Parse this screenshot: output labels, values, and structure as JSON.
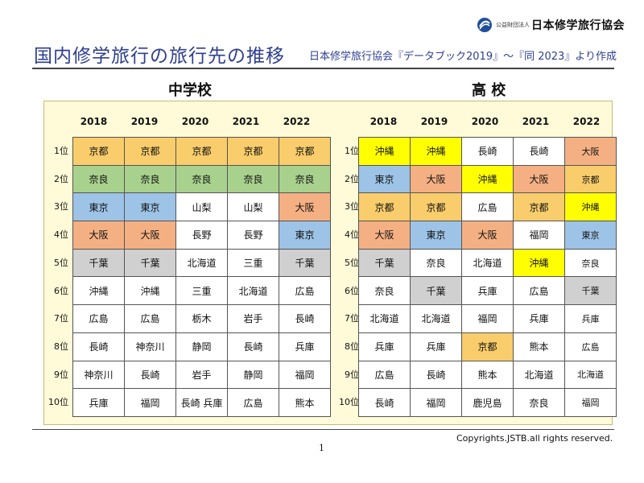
{
  "org": {
    "sub": "公益財団法人",
    "name": "日本修学旅行協会",
    "logo_icon": "jstb-logo-icon"
  },
  "title": "国内修学旅行の旅行先の推移",
  "source": "日本修学旅行協会『データブック2019』～『同 2023』より作成",
  "colors": {
    "orange": "#f9cd6b",
    "green": "#a9d18e",
    "blue": "#9dc3e6",
    "salmon": "#f4b083",
    "gray": "#d0d0d0",
    "yellow": "#ffff00",
    "panel": "#fffbd8",
    "title": "#2e3f8f"
  },
  "ranks": [
    "1位",
    "2位",
    "3位",
    "4位",
    "5位",
    "6位",
    "7位",
    "8位",
    "9位",
    "10位"
  ],
  "junior_high": {
    "title": "中学校",
    "years": [
      "2018",
      "2019",
      "2020",
      "2021",
      "2022"
    ],
    "rows": [
      [
        "京都",
        "京都",
        "京都",
        "京都",
        "京都"
      ],
      [
        "奈良",
        "奈良",
        "奈良",
        "奈良",
        "奈良"
      ],
      [
        "東京",
        "東京",
        "山梨",
        "山梨",
        "大阪"
      ],
      [
        "大阪",
        "大阪",
        "長野",
        "長野",
        "東京"
      ],
      [
        "千葉",
        "千葉",
        "北海道",
        "三重",
        "千葉"
      ],
      [
        "沖縄",
        "沖縄",
        "三重",
        "北海道",
        "広島"
      ],
      [
        "広島",
        "広島",
        "栃木",
        "岩手",
        "長崎"
      ],
      [
        "長崎",
        "神奈川",
        "静岡",
        "長崎",
        "兵庫"
      ],
      [
        "神奈川",
        "長崎",
        "岩手",
        "静岡",
        "福岡"
      ],
      [
        "兵庫",
        "福岡",
        "長崎 兵庫",
        "広島",
        "熊本"
      ]
    ]
  },
  "high_school": {
    "title": "高 校",
    "years": [
      "2018",
      "2019",
      "2020",
      "2021",
      "2022"
    ],
    "rows": [
      [
        "沖縄",
        "沖縄",
        "長崎",
        "長崎",
        "大阪"
      ],
      [
        "東京",
        "大阪",
        "沖縄",
        "大阪",
        "京都"
      ],
      [
        "京都",
        "京都",
        "広島",
        "京都",
        "沖縄"
      ],
      [
        "大阪",
        "東京",
        "大阪",
        "福岡",
        "東京"
      ],
      [
        "千葉",
        "奈良",
        "北海道",
        "沖縄",
        "奈良"
      ],
      [
        "奈良",
        "千葉",
        "兵庫",
        "広島",
        "千葉"
      ],
      [
        "北海道",
        "北海道",
        "福岡",
        "兵庫",
        "兵庫"
      ],
      [
        "兵庫",
        "兵庫",
        "京都",
        "熊本",
        "広島"
      ],
      [
        "広島",
        "長崎",
        "熊本",
        "北海道",
        "北海道"
      ],
      [
        "長崎",
        "福岡",
        "鹿児島",
        "奈良",
        "福岡"
      ]
    ]
  },
  "copyright": "Copyrights.JSTB.all rights reserved.",
  "page_number": "1"
}
